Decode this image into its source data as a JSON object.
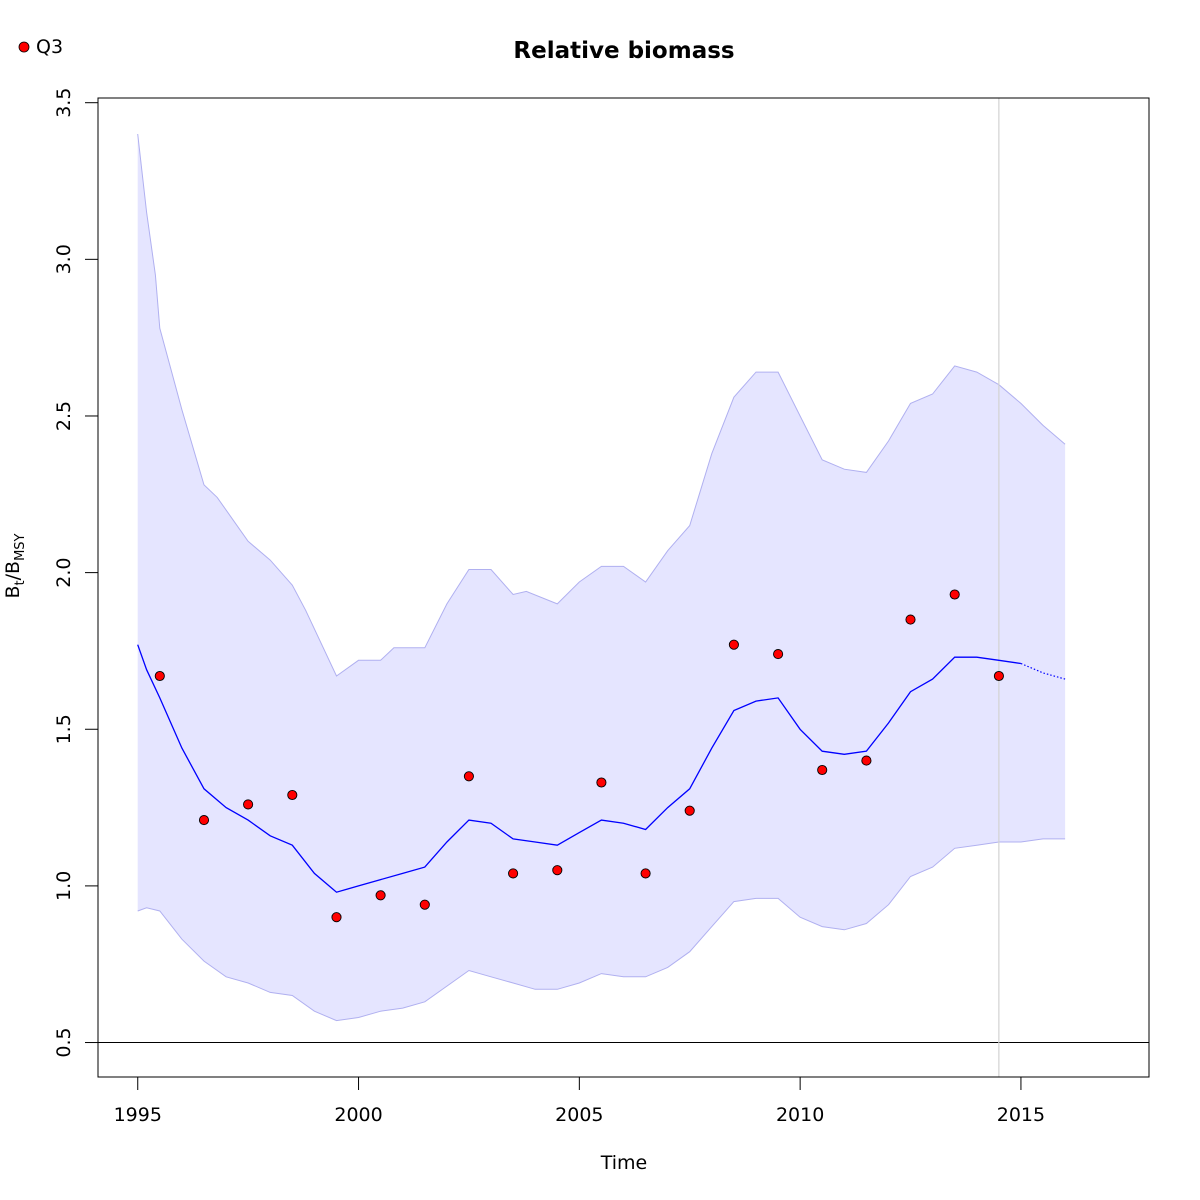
{
  "chart_data": {
    "type": "line",
    "title": "Relative biomass",
    "xlabel": "Time",
    "ylabel": {
      "base": "B",
      "sub1": "t",
      "sep": "/B",
      "sub2": "MSY"
    },
    "xlim": [
      1994.1,
      2017.9
    ],
    "ylim": [
      0.39,
      3.515
    ],
    "x_ticks": [
      1995,
      2000,
      2005,
      2010,
      2015
    ],
    "y_ticks": [
      0.5,
      1.0,
      1.5,
      2.0,
      2.5,
      3.0,
      3.5
    ],
    "y_tick_labels": [
      "0.5",
      "1.0",
      "1.5",
      "2.0",
      "2.5",
      "3.0",
      "3.5"
    ],
    "hline": 0.5,
    "vline": 2014.5,
    "legend": {
      "position": "top-left",
      "entries": [
        {
          "label": "Q3",
          "color": "#ff0000"
        }
      ]
    },
    "colors": {
      "line": "#0000ff",
      "band": "#e5e5ff",
      "band_edge": "#b0b0f0",
      "point": "#ff0000",
      "vline": "#d3d3d3"
    },
    "series": [
      {
        "kind": "ci_upper",
        "x": [
          1995,
          1995.2,
          1995.4,
          1995.5,
          1996,
          1996.5,
          1996.8,
          1997.3,
          1997.5,
          1998,
          1998.5,
          1998.8,
          1999.5,
          2000,
          2000.5,
          2000.8,
          2001.5,
          2002,
          2002.5,
          2003,
          2003.5,
          2003.8,
          2004.5,
          2005,
          2005.5,
          2006,
          2006.5,
          2007,
          2007.5,
          2008,
          2008.5,
          2009,
          2009.5,
          2010,
          2010.5,
          2011,
          2011.5,
          2012,
          2012.5,
          2013,
          2013.5,
          2014,
          2014.5,
          2015,
          2015.5,
          2016
        ],
        "y": [
          3.4,
          3.15,
          2.95,
          2.78,
          2.52,
          2.28,
          2.24,
          2.14,
          2.1,
          2.04,
          1.96,
          1.88,
          1.67,
          1.72,
          1.72,
          1.76,
          1.76,
          1.9,
          2.01,
          2.01,
          1.93,
          1.94,
          1.9,
          1.97,
          2.02,
          2.02,
          1.97,
          2.07,
          2.15,
          2.38,
          2.56,
          2.64,
          2.64,
          2.5,
          2.36,
          2.33,
          2.32,
          2.42,
          2.54,
          2.57,
          2.66,
          2.64,
          2.6,
          2.54,
          2.47,
          2.41
        ]
      },
      {
        "kind": "ci_lower",
        "x": [
          1995,
          1995.2,
          1995.5,
          1996,
          1996.5,
          1997,
          1997.5,
          1998,
          1998.5,
          1999,
          1999.5,
          2000,
          2000.5,
          2001,
          2001.5,
          2002,
          2002.5,
          2003,
          2003.5,
          2004,
          2004.5,
          2005,
          2005.5,
          2006,
          2006.5,
          2007,
          2007.5,
          2008,
          2008.5,
          2009,
          2009.5,
          2010,
          2010.5,
          2011,
          2011.5,
          2012,
          2012.5,
          2013,
          2013.5,
          2014,
          2014.5,
          2015,
          2015.5,
          2016
        ],
        "y": [
          0.92,
          0.93,
          0.92,
          0.83,
          0.76,
          0.71,
          0.69,
          0.66,
          0.65,
          0.6,
          0.57,
          0.58,
          0.6,
          0.61,
          0.63,
          0.68,
          0.73,
          0.71,
          0.69,
          0.67,
          0.67,
          0.69,
          0.72,
          0.71,
          0.71,
          0.74,
          0.79,
          0.87,
          0.95,
          0.96,
          0.96,
          0.9,
          0.87,
          0.86,
          0.88,
          0.94,
          1.03,
          1.06,
          1.12,
          1.13,
          1.14,
          1.14,
          1.15,
          1.15
        ]
      },
      {
        "kind": "estimate",
        "x": [
          1995,
          1995.2,
          1995.5,
          1996,
          1996.5,
          1997,
          1997.5,
          1998,
          1998.5,
          1999,
          1999.5,
          2000,
          2000.5,
          2001,
          2001.5,
          2002,
          2002.5,
          2003,
          2003.5,
          2004,
          2004.5,
          2005,
          2005.5,
          2006,
          2006.5,
          2007,
          2007.5,
          2008,
          2008.5,
          2009,
          2009.5,
          2010,
          2010.5,
          2011,
          2011.5,
          2012,
          2012.5,
          2013,
          2013.5,
          2014,
          2014.5,
          2015
        ],
        "y": [
          1.77,
          1.69,
          1.6,
          1.44,
          1.31,
          1.25,
          1.21,
          1.16,
          1.13,
          1.04,
          0.98,
          1.0,
          1.02,
          1.04,
          1.06,
          1.14,
          1.21,
          1.2,
          1.15,
          1.14,
          1.13,
          1.17,
          1.21,
          1.2,
          1.18,
          1.25,
          1.31,
          1.44,
          1.56,
          1.59,
          1.6,
          1.5,
          1.43,
          1.42,
          1.43,
          1.52,
          1.62,
          1.66,
          1.73,
          1.73,
          1.72,
          1.71
        ]
      },
      {
        "kind": "projection",
        "x": [
          2015,
          2015.5,
          2016
        ],
        "y": [
          1.71,
          1.68,
          1.66
        ]
      },
      {
        "kind": "points",
        "name": "Q3",
        "x": [
          1995.5,
          1996.5,
          1997.5,
          1998.5,
          1999.5,
          2000.5,
          2001.5,
          2002.5,
          2003.5,
          2004.5,
          2005.5,
          2006.5,
          2007.5,
          2008.5,
          2009.5,
          2010.5,
          2011.5,
          2012.5,
          2013.5,
          2014.5
        ],
        "y": [
          1.67,
          1.21,
          1.26,
          1.29,
          0.9,
          0.97,
          0.94,
          1.35,
          1.04,
          1.05,
          1.33,
          1.04,
          1.24,
          1.77,
          1.74,
          1.37,
          1.4,
          1.85,
          1.93,
          1.67
        ]
      }
    ]
  }
}
